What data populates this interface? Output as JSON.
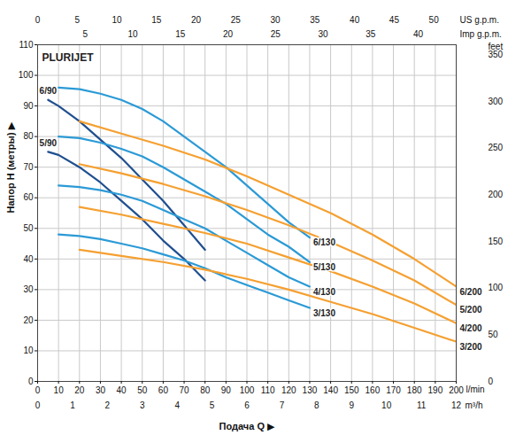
{
  "chart_data": {
    "type": "line",
    "title": "PLURIJET",
    "x_label": "Подача Q ▶",
    "x_unit": "l/min",
    "y_label": "Напор H (метры) ▶",
    "xlim": [
      0,
      200
    ],
    "xticks": [
      0,
      10,
      20,
      30,
      40,
      50,
      60,
      70,
      80,
      90,
      100,
      110,
      120,
      130,
      140,
      150,
      160,
      170,
      180,
      190,
      200
    ],
    "ylim": [
      0,
      110
    ],
    "yticks": [
      0,
      10,
      20,
      30,
      40,
      50,
      60,
      70,
      80,
      90,
      100,
      110
    ],
    "y2_label": "feet",
    "y2lim": [
      0,
      360.89
    ],
    "y2ticks": [
      0,
      50,
      100,
      150,
      200,
      250,
      300,
      350
    ],
    "top_axes": [
      {
        "label": "US g.p.m.",
        "xlim": [
          0,
          52.83
        ],
        "xticks": [
          0,
          5,
          10,
          15,
          20,
          25,
          30,
          35,
          40,
          45,
          50
        ]
      },
      {
        "label": "Imp g.p.m.",
        "xlim": [
          0,
          43.99
        ],
        "xticks": [
          5,
          10,
          15,
          20,
          25,
          30,
          35,
          40
        ]
      }
    ],
    "bottom_axes": [
      {
        "label": "m³/h",
        "xlim": [
          0,
          12
        ],
        "xticks": [
          0,
          1,
          2,
          3,
          4,
          5,
          6,
          7,
          8,
          9,
          10,
          11,
          12
        ]
      }
    ],
    "grid": true,
    "series": [
      {
        "name": "6/90",
        "color": "#1f4f8f",
        "x": [
          5,
          10,
          20,
          30,
          40,
          50,
          60,
          70,
          80
        ],
        "values": [
          92,
          90,
          85,
          79,
          73,
          66,
          59,
          51,
          43
        ]
      },
      {
        "name": "5/90",
        "color": "#1f4f8f",
        "x": [
          5,
          10,
          20,
          30,
          40,
          50,
          60,
          70,
          80
        ],
        "values": [
          75,
          74,
          70,
          65,
          59,
          53,
          46,
          40,
          33
        ]
      },
      {
        "name": "6/130",
        "color": "#2b9ad6",
        "x": [
          10,
          20,
          30,
          40,
          50,
          60,
          70,
          80,
          90,
          100,
          110,
          120,
          130
        ],
        "values": [
          96,
          95.5,
          94,
          92,
          89,
          85,
          80,
          75,
          70,
          64,
          58,
          52,
          47
        ]
      },
      {
        "name": "5/130",
        "color": "#2b9ad6",
        "x": [
          10,
          20,
          30,
          40,
          50,
          60,
          70,
          80,
          90,
          100,
          110,
          120,
          130
        ],
        "values": [
          80,
          79.5,
          78,
          76,
          73.5,
          70,
          66,
          62,
          58,
          53,
          48,
          44,
          39
        ]
      },
      {
        "name": "4/130",
        "color": "#2b9ad6",
        "x": [
          10,
          20,
          30,
          40,
          50,
          60,
          70,
          80,
          90,
          100,
          110,
          120,
          130
        ],
        "values": [
          64,
          63.5,
          62.5,
          61,
          59,
          56,
          53,
          50,
          46,
          42,
          38,
          34,
          31
        ]
      },
      {
        "name": "3/130",
        "color": "#2b9ad6",
        "x": [
          10,
          20,
          30,
          40,
          50,
          60,
          70,
          80,
          90,
          100,
          110,
          120,
          130
        ],
        "values": [
          48,
          47.5,
          46.5,
          45,
          43.5,
          41.5,
          39.5,
          37,
          34,
          31.5,
          29,
          26.5,
          24
        ]
      },
      {
        "name": "6/200",
        "color": "#f5a031",
        "x": [
          20,
          40,
          60,
          80,
          100,
          120,
          140,
          160,
          180,
          200
        ],
        "values": [
          85,
          81,
          77,
          72.5,
          67,
          61,
          55,
          48,
          40,
          31
        ]
      },
      {
        "name": "5/200",
        "color": "#f5a031",
        "x": [
          20,
          40,
          60,
          80,
          100,
          120,
          140,
          160,
          180,
          200
        ],
        "values": [
          71,
          68,
          64.5,
          60.5,
          56,
          51,
          45.5,
          39.5,
          33,
          25
        ]
      },
      {
        "name": "4/200",
        "color": "#f5a031",
        "x": [
          20,
          40,
          60,
          80,
          100,
          120,
          140,
          160,
          180,
          200
        ],
        "values": [
          57,
          54.5,
          51.5,
          48.5,
          45,
          40.5,
          36,
          31,
          25.5,
          19
        ]
      },
      {
        "name": "3/200",
        "color": "#f5a031",
        "x": [
          20,
          40,
          60,
          80,
          100,
          120,
          140,
          160,
          180,
          200
        ],
        "values": [
          43,
          41,
          39,
          36.5,
          33.5,
          30,
          26,
          22,
          17.5,
          13
        ]
      }
    ]
  }
}
